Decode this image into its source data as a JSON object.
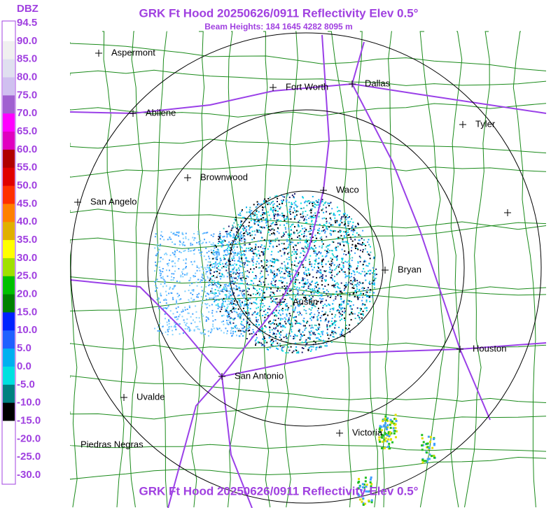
{
  "header": {
    "title": "GRK Ft Hood 20250626/0911 Reflectivity Elev 0.5°",
    "subtitle": "Beam Heights: 184 1645 4282 8095 m"
  },
  "legend": {
    "unit": "DBZ",
    "labels": [
      "94.5",
      "90.0",
      "85.0",
      "80.0",
      "75.0",
      "70.0",
      "65.0",
      "60.0",
      "55.0",
      "50.0",
      "45.0",
      "40.0",
      "35.0",
      "30.0",
      "25.0",
      "20.0",
      "15.0",
      "10.0",
      "5.0",
      "0.0",
      "-5.0",
      "-10.0",
      "-15.0",
      "-20.0",
      "-25.0",
      "-30.0"
    ]
  },
  "cities": [
    {
      "name": "Aspermont"
    },
    {
      "name": "Fort Worth"
    },
    {
      "name": "Dallas"
    },
    {
      "name": "Abilene"
    },
    {
      "name": "Tyler"
    },
    {
      "name": "Brownwood"
    },
    {
      "name": "Waco"
    },
    {
      "name": "San Angelo"
    },
    {
      "name": "Bryan"
    },
    {
      "name": "Austin"
    },
    {
      "name": "Houston"
    },
    {
      "name": "San Antonio"
    },
    {
      "name": "Uvalde"
    },
    {
      "name": "Victoria"
    },
    {
      "name": "Piedras Negras"
    }
  ]
}
